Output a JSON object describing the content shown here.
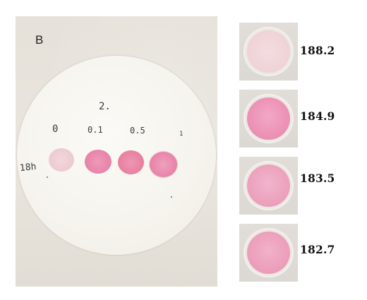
{
  "figure": {
    "panel_label": "B"
  },
  "photo": {
    "handwriting": {
      "top_mark": "2.",
      "conc_0": "0",
      "conc_01": "0.1",
      "conc_05": "0.5",
      "conc_1": "1",
      "time_label": "18h"
    },
    "spot_colors": [
      "#edccd3",
      "#e884ab",
      "#e7819f",
      "#e986ab"
    ]
  },
  "wells": [
    {
      "value": "188.2",
      "color": "#efd3d7"
    },
    {
      "value": "184.9",
      "color": "#ec92b6"
    },
    {
      "value": "183.5",
      "color": "#eca2bd"
    },
    {
      "value": "182.7",
      "color": "#ec9fbb"
    }
  ]
}
